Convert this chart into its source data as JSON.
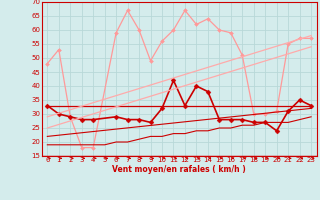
{
  "xlim": [
    -0.5,
    23.5
  ],
  "ylim": [
    15,
    70
  ],
  "yticks": [
    15,
    20,
    25,
    30,
    35,
    40,
    45,
    50,
    55,
    60,
    65,
    70
  ],
  "xticks": [
    0,
    1,
    2,
    3,
    4,
    5,
    6,
    7,
    8,
    9,
    10,
    11,
    12,
    13,
    14,
    15,
    16,
    17,
    18,
    19,
    20,
    21,
    22,
    23
  ],
  "xlabel": "Vent moyen/en rafales ( km/h )",
  "background_color": "#d4ecec",
  "grid_color": "#b8d8d8",
  "series": [
    {
      "x": [
        0,
        1,
        2,
        3,
        4,
        6,
        7,
        8,
        9,
        10,
        11,
        12,
        13,
        14,
        15,
        16,
        17,
        18,
        19,
        20,
        21,
        22,
        23
      ],
      "y": [
        48,
        53,
        29,
        18,
        18,
        59,
        67,
        60,
        49,
        56,
        60,
        67,
        62,
        64,
        60,
        59,
        51,
        30,
        30,
        31,
        55,
        57,
        57
      ],
      "color": "#ff9999",
      "lw": 0.9,
      "marker": "D",
      "ms": 2.0
    },
    {
      "x": [
        0,
        1,
        2,
        3,
        4,
        6,
        7,
        8,
        9,
        10,
        11,
        12,
        13,
        14,
        15,
        16,
        17,
        18,
        19,
        20,
        21,
        22,
        23
      ],
      "y": [
        33,
        30,
        29,
        28,
        28,
        29,
        28,
        28,
        27,
        32,
        42,
        33,
        40,
        38,
        28,
        28,
        28,
        27,
        27,
        24,
        31,
        35,
        33
      ],
      "color": "#cc0000",
      "lw": 1.2,
      "marker": "D",
      "ms": 2.5
    },
    {
      "x": [
        0,
        23
      ],
      "y": [
        33,
        33
      ],
      "color": "#cc0000",
      "lw": 0.9,
      "marker": null,
      "ms": 0
    },
    {
      "x": [
        0,
        23
      ],
      "y": [
        22,
        32
      ],
      "color": "#cc0000",
      "lw": 0.8,
      "marker": null,
      "ms": 0
    },
    {
      "x": [
        0,
        23
      ],
      "y": [
        29,
        58
      ],
      "color": "#ffaaaa",
      "lw": 0.9,
      "marker": null,
      "ms": 0
    },
    {
      "x": [
        0,
        23
      ],
      "y": [
        25,
        54
      ],
      "color": "#ffaaaa",
      "lw": 0.9,
      "marker": null,
      "ms": 0
    },
    {
      "x": [
        0,
        1,
        2,
        3,
        4,
        5,
        6,
        7,
        8,
        9,
        10,
        11,
        12,
        13,
        14,
        15,
        16,
        17,
        18,
        19,
        20,
        21,
        22,
        23
      ],
      "y": [
        19,
        19,
        19,
        19,
        19,
        19,
        20,
        20,
        21,
        22,
        22,
        23,
        23,
        24,
        24,
        25,
        25,
        26,
        26,
        27,
        27,
        27,
        28,
        29
      ],
      "color": "#cc0000",
      "lw": 0.8,
      "marker": null,
      "ms": 0
    }
  ],
  "wind_arrows": [
    [
      0,
      160
    ],
    [
      1,
      160
    ],
    [
      2,
      160
    ],
    [
      3,
      160
    ],
    [
      4,
      160
    ],
    [
      6,
      160
    ],
    [
      7,
      160
    ],
    [
      8,
      160
    ],
    [
      9,
      160
    ],
    [
      10,
      160
    ],
    [
      11,
      160
    ],
    [
      12,
      160
    ],
    [
      13,
      160
    ],
    [
      14,
      160
    ],
    [
      15,
      160
    ],
    [
      16,
      160
    ],
    [
      17,
      160
    ],
    [
      18,
      160
    ],
    [
      19,
      160
    ],
    [
      20,
      160
    ],
    [
      21,
      160
    ],
    [
      22,
      160
    ],
    [
      23,
      160
    ]
  ]
}
